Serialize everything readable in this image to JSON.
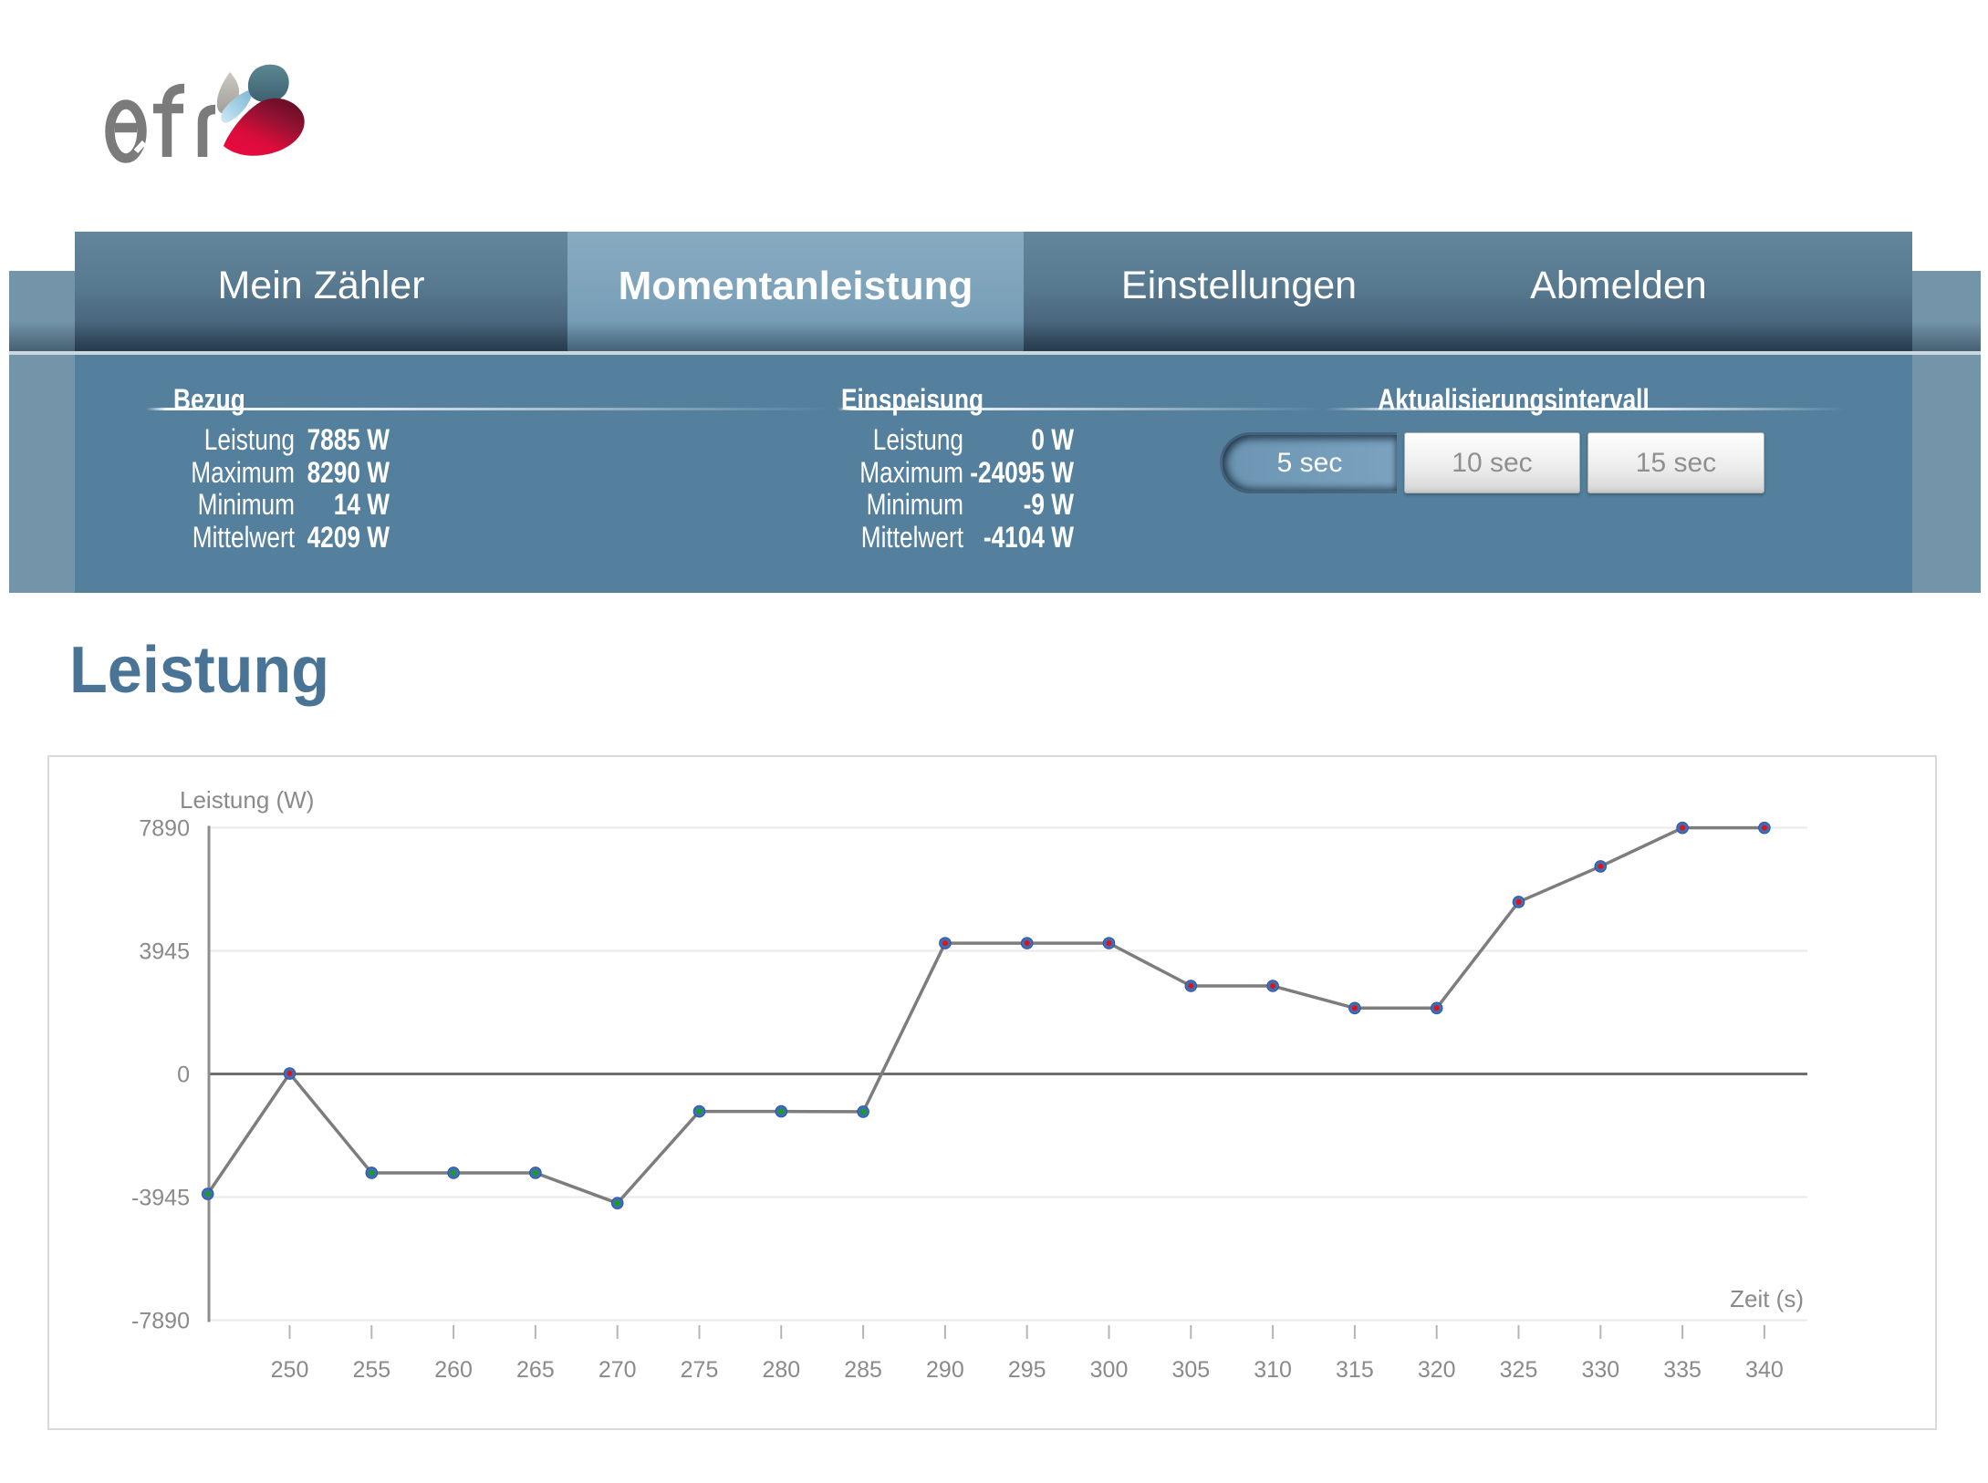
{
  "brand": {
    "logo_text": "efr"
  },
  "nav": {
    "tabs": [
      {
        "label": "Mein Zähler",
        "active": false
      },
      {
        "label": "Momentanleistung",
        "active": true
      },
      {
        "label": "Einstellungen",
        "active": false
      },
      {
        "label": "Abmelden",
        "active": false
      }
    ]
  },
  "panel": {
    "bezug": {
      "title": "Bezug",
      "rows": [
        {
          "label": "Leistung",
          "value": "7885 W"
        },
        {
          "label": "Maximum",
          "value": "8290 W"
        },
        {
          "label": "Minimum",
          "value": "14 W"
        },
        {
          "label": "Mittelwert",
          "value": "4209 W"
        }
      ]
    },
    "einspeisung": {
      "title": "Einspeisung",
      "rows": [
        {
          "label": "Leistung",
          "value": "0 W"
        },
        {
          "label": "Maximum",
          "value": "-24095 W"
        },
        {
          "label": "Minimum",
          "value": "-9 W"
        },
        {
          "label": "Mittelwert",
          "value": "-4104 W"
        }
      ]
    },
    "interval": {
      "title": "Aktualisierungsintervall",
      "selected": "5 sec",
      "options": [
        "5 sec",
        "10 sec",
        "15 sec"
      ]
    }
  },
  "section_title": "Leistung",
  "chart_data": {
    "type": "line",
    "title": "",
    "xlabel": "Zeit (s)",
    "ylabel": "Leistung (W)",
    "x": [
      245,
      250,
      255,
      260,
      265,
      270,
      275,
      280,
      285,
      290,
      295,
      300,
      305,
      310,
      315,
      320,
      325,
      330,
      335,
      340
    ],
    "values": [
      -3845,
      14,
      -3170,
      -3170,
      -3170,
      -4140,
      -1200,
      -1200,
      -1210,
      4190,
      4190,
      4190,
      2820,
      2820,
      2110,
      2110,
      5510,
      6650,
      7885,
      7885
    ],
    "yticks": [
      7890,
      3945,
      0,
      -3945,
      -7890
    ],
    "xticks": [
      250,
      255,
      260,
      265,
      270,
      275,
      280,
      285,
      290,
      295,
      300,
      305,
      310,
      315,
      320,
      325,
      330,
      335,
      340
    ],
    "ylim": [
      -7890,
      7890
    ],
    "grid": true,
    "legend": "none",
    "marker_color": "#3f6db8",
    "marker_center_positive": "#e01212",
    "marker_center_negative": "#18a018",
    "line_color": "#7d7d7d"
  },
  "colors": {
    "band_edge": "#7394a9",
    "band_middle": "#54809e",
    "tab_active": "#7ca2ba",
    "heading": "#4a7495",
    "selected_button": "#7ba3c0"
  }
}
